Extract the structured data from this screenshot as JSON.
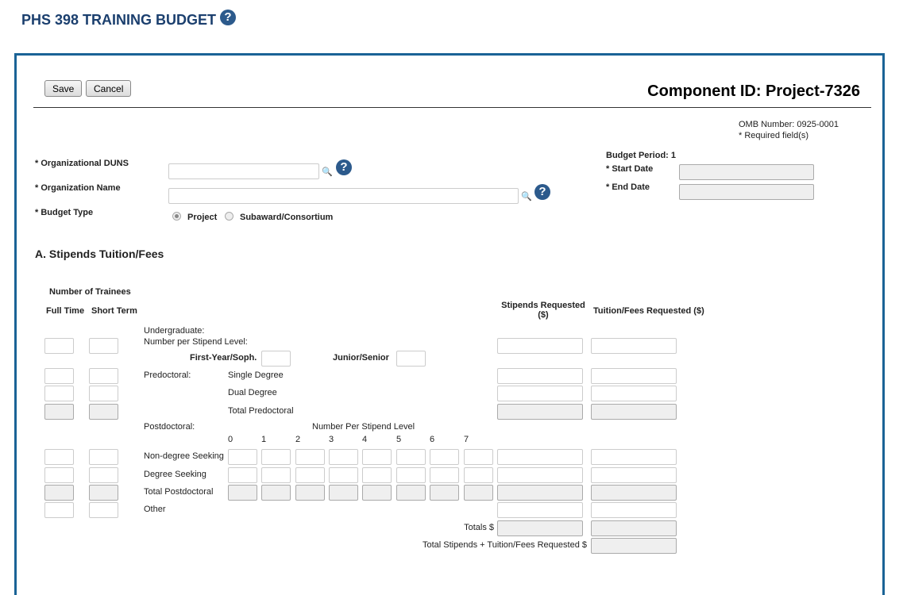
{
  "header": {
    "title": "PHS 398 TRAINING BUDGET",
    "help_icon": "question-circle-icon"
  },
  "toolbar": {
    "save_label": "Save",
    "cancel_label": "Cancel"
  },
  "component_id": "Component ID: Project-7326",
  "omb": {
    "number": "OMB Number: 0925-0001",
    "required": "* Required field(s)"
  },
  "org": {
    "duns_label": "* Organizational DUNS",
    "duns_value": "",
    "name_label": "* Organization Name",
    "name_value": "",
    "budget_type_label": "* Budget Type",
    "options": [
      "Project",
      "Subaward/Consortium"
    ],
    "selected": "Project"
  },
  "period": {
    "label": "Budget Period: 1",
    "start_label": "* Start Date",
    "start_value": "",
    "end_label": "* End Date",
    "end_value": ""
  },
  "section": {
    "title": "A. Stipends Tuition/Fees",
    "num_trainees": "Number of Trainees",
    "full_time": "Full Time",
    "short_term": "Short Term",
    "stipends": "Stipends Requested ($)",
    "tuition": "Tuition/Fees Requested ($)"
  },
  "undergrad": {
    "label": "Undergraduate:",
    "sub": "Number per Stipend Level:",
    "first_year": "First-Year/Soph.",
    "junior": "Junior/Senior"
  },
  "predoc": {
    "label": "Predoctoral:",
    "single": "Single Degree",
    "dual": "Dual Degree",
    "total": "Total Predoctoral"
  },
  "postdoc": {
    "label": "Postdoctoral:",
    "level_label": "Number Per Stipend Level",
    "levels": [
      "0",
      "1",
      "2",
      "3",
      "4",
      "5",
      "6",
      "7"
    ],
    "non_degree": "Non-degree Seeking",
    "degree": "Degree Seeking",
    "total": "Total Postdoctoral",
    "other": "Other"
  },
  "totals": {
    "totals_label": "Totals $",
    "grand_label": "Total Stipends + Tuition/Fees Requested $"
  }
}
